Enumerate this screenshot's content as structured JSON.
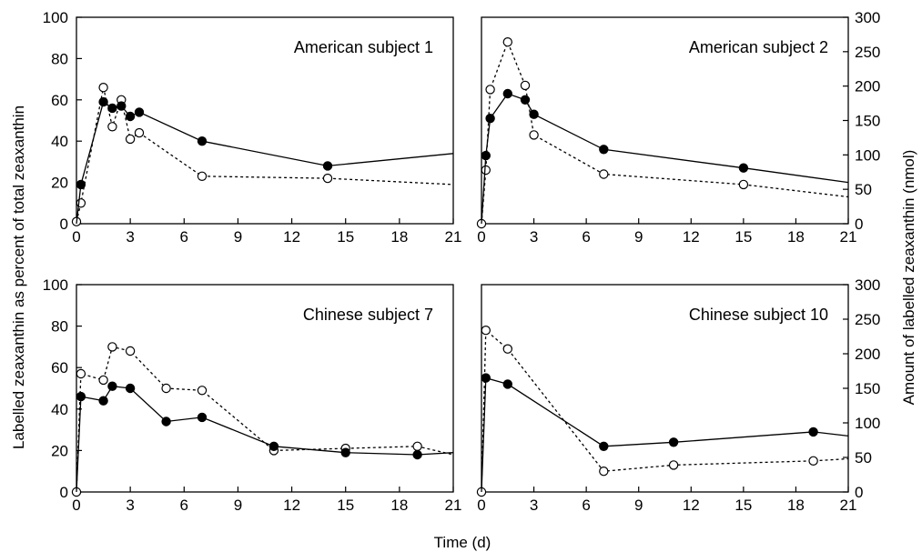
{
  "figure": {
    "ylabel_left": "Labelled zeaxanthin as percent of total zeaxanthin",
    "ylabel_right": "Amount of labelled zeaxanthin (nmol)",
    "xlabel": "Time (d)"
  },
  "chart_data": [
    {
      "type": "line",
      "title": "American subject 1",
      "position": "top-left",
      "xlim": [
        0,
        21
      ],
      "x_ticks": [
        0,
        3,
        6,
        9,
        12,
        15,
        18,
        21
      ],
      "ylim_left": [
        0,
        100
      ],
      "y_ticks_left": [
        0,
        20,
        40,
        60,
        80,
        100
      ],
      "ylim_right": [
        0,
        300
      ],
      "y_ticks_right": [],
      "series": [
        {
          "marker": "filled",
          "line": "solid",
          "axis": "left",
          "x": [
            0,
            0.25,
            1.5,
            2,
            2.5,
            3,
            3.5,
            7,
            14,
            21
          ],
          "y": [
            0,
            19,
            59,
            56,
            57,
            52,
            54,
            40,
            28,
            34
          ],
          "markers_shown": [
            false,
            true,
            true,
            true,
            true,
            true,
            true,
            true,
            true,
            false
          ]
        },
        {
          "marker": "open",
          "line": "dotted",
          "axis": "left",
          "x": [
            0,
            0.25,
            1.5,
            2,
            2.5,
            3,
            3.5,
            7,
            14,
            21
          ],
          "y": [
            1,
            10,
            66,
            47,
            60,
            41,
            44,
            23,
            22,
            19
          ],
          "markers_shown": [
            true,
            true,
            true,
            true,
            true,
            true,
            true,
            true,
            true,
            false
          ]
        }
      ]
    },
    {
      "type": "line",
      "title": "American subject 2",
      "position": "top-right",
      "xlim": [
        0,
        21
      ],
      "x_ticks": [
        0,
        3,
        6,
        9,
        12,
        15,
        18,
        21
      ],
      "ylim_left": [
        0,
        100
      ],
      "y_ticks_left": [],
      "ylim_right": [
        0,
        300
      ],
      "y_ticks_right": [
        0,
        50,
        100,
        150,
        200,
        250,
        300
      ],
      "series": [
        {
          "marker": "filled",
          "line": "solid",
          "axis": "left",
          "x": [
            0,
            0.25,
            0.5,
            1.5,
            2.5,
            3,
            7,
            15,
            21
          ],
          "y": [
            0,
            33,
            51,
            63,
            60,
            53,
            36,
            27,
            20
          ],
          "markers_shown": [
            false,
            true,
            true,
            true,
            true,
            true,
            true,
            true,
            false
          ]
        },
        {
          "marker": "open",
          "line": "dotted",
          "axis": "left",
          "x": [
            0,
            0.25,
            0.5,
            1.5,
            2.5,
            3,
            7,
            15,
            21
          ],
          "y": [
            0,
            26,
            65,
            88,
            67,
            43,
            24,
            19,
            13
          ],
          "markers_shown": [
            true,
            true,
            true,
            true,
            true,
            true,
            true,
            true,
            false
          ]
        }
      ]
    },
    {
      "type": "line",
      "title": "Chinese subject 7",
      "position": "bottom-left",
      "xlim": [
        0,
        21
      ],
      "x_ticks": [
        0,
        3,
        6,
        9,
        12,
        15,
        18,
        21
      ],
      "ylim_left": [
        0,
        100
      ],
      "y_ticks_left": [
        0,
        20,
        40,
        60,
        80,
        100
      ],
      "ylim_right": [
        0,
        300
      ],
      "y_ticks_right": [],
      "series": [
        {
          "marker": "filled",
          "line": "solid",
          "axis": "left",
          "x": [
            0,
            0.25,
            1.5,
            2,
            3,
            5,
            7,
            11,
            15,
            19,
            21
          ],
          "y": [
            0,
            46,
            44,
            51,
            50,
            34,
            36,
            22,
            19,
            18,
            19
          ],
          "markers_shown": [
            false,
            true,
            true,
            true,
            true,
            true,
            true,
            true,
            true,
            true,
            false
          ]
        },
        {
          "marker": "open",
          "line": "dotted",
          "axis": "left",
          "x": [
            0,
            0.25,
            1.5,
            2,
            3,
            5,
            7,
            11,
            15,
            19,
            21
          ],
          "y": [
            0,
            57,
            54,
            70,
            68,
            50,
            49,
            20,
            21,
            22,
            18
          ],
          "markers_shown": [
            true,
            true,
            true,
            true,
            true,
            true,
            true,
            true,
            true,
            true,
            false
          ]
        }
      ]
    },
    {
      "type": "line",
      "title": "Chinese subject 10",
      "position": "bottom-right",
      "xlim": [
        0,
        21
      ],
      "x_ticks": [
        0,
        3,
        6,
        9,
        12,
        15,
        18,
        21
      ],
      "ylim_left": [
        0,
        100
      ],
      "y_ticks_left": [],
      "ylim_right": [
        0,
        300
      ],
      "y_ticks_right": [
        0,
        50,
        100,
        150,
        200,
        250,
        300
      ],
      "series": [
        {
          "marker": "filled",
          "line": "solid",
          "axis": "left",
          "x": [
            0,
            0.25,
            1.5,
            7,
            11,
            19,
            21
          ],
          "y": [
            0,
            55,
            52,
            22,
            24,
            29,
            27
          ],
          "markers_shown": [
            false,
            true,
            true,
            true,
            true,
            true,
            false
          ]
        },
        {
          "marker": "open",
          "line": "dotted",
          "axis": "left",
          "x": [
            0,
            0.25,
            1.5,
            7,
            11,
            19,
            21
          ],
          "y": [
            0,
            78,
            69,
            10,
            13,
            15,
            16
          ],
          "markers_shown": [
            true,
            true,
            true,
            true,
            true,
            true,
            false
          ]
        }
      ]
    }
  ]
}
